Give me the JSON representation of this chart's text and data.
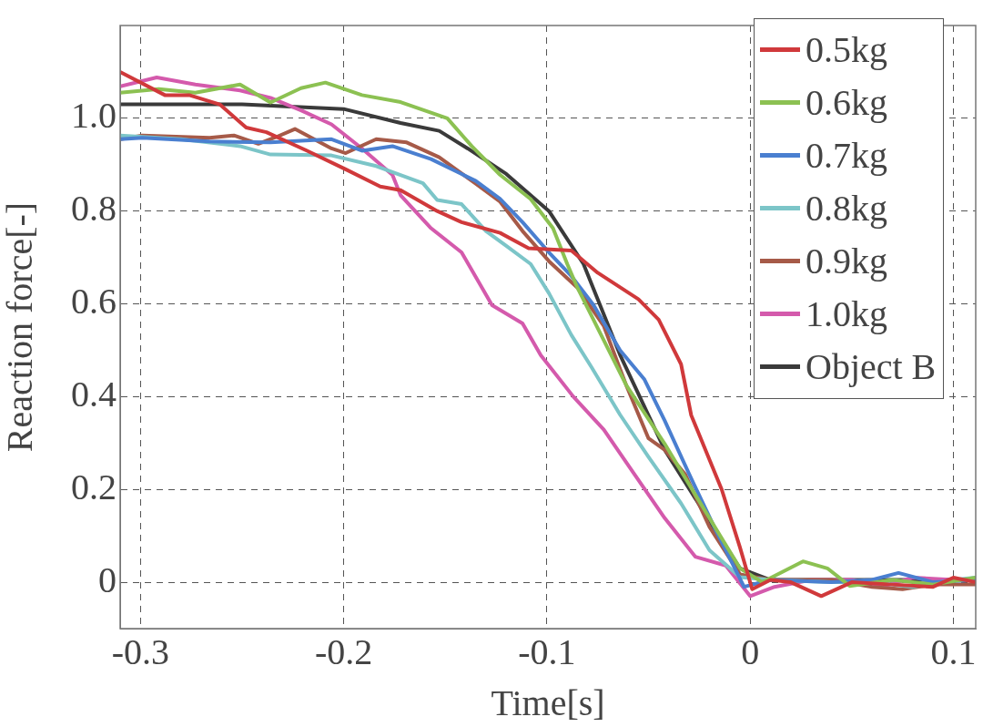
{
  "chart_data": {
    "type": "line",
    "xlabel": "Time[s]",
    "ylabel": "Reaction force[-]",
    "xlim": [
      -0.31,
      0.111
    ],
    "ylim": [
      -0.1,
      1.2
    ],
    "xticks": [
      -0.3,
      -0.2,
      -0.1,
      0,
      0.1
    ],
    "yticks": [
      0,
      0.2,
      0.4,
      0.6,
      0.8,
      {
        "value": 1,
        "label": "1.0"
      }
    ],
    "grid": true,
    "legend": "top right",
    "series": [
      {
        "name": "0.5kg",
        "color": "#d0393b",
        "x": [
          -0.31,
          -0.288,
          -0.276,
          -0.261,
          -0.248,
          -0.238,
          -0.218,
          -0.199,
          -0.182,
          -0.172,
          -0.154,
          -0.142,
          -0.123,
          -0.109,
          -0.088,
          -0.075,
          -0.055,
          -0.045,
          -0.034,
          -0.029,
          -0.014,
          -0.005,
          0.001,
          0.01,
          0.02,
          0.035,
          0.05,
          0.07,
          0.09,
          0.1,
          0.111
        ],
        "values": [
          1.1,
          1.05,
          1.05,
          1.03,
          0.98,
          0.97,
          0.93,
          0.89,
          0.853,
          0.845,
          0.8,
          0.776,
          0.753,
          0.72,
          0.715,
          0.667,
          0.61,
          0.566,
          0.47,
          0.36,
          0.2,
          0.075,
          -0.015,
          0.005,
          0.0,
          -0.03,
          0.0,
          -0.005,
          -0.01,
          0.01,
          0.0
        ]
      },
      {
        "name": "0.6kg",
        "color": "#8cc152",
        "x": [
          -0.31,
          -0.291,
          -0.273,
          -0.251,
          -0.236,
          -0.221,
          -0.209,
          -0.191,
          -0.172,
          -0.149,
          -0.137,
          -0.123,
          -0.108,
          -0.097,
          -0.09,
          -0.085,
          -0.061,
          -0.042,
          -0.02,
          -0.005,
          0.006,
          0.026,
          0.038,
          0.049,
          0.07,
          0.09,
          0.111
        ],
        "values": [
          1.055,
          1.063,
          1.055,
          1.073,
          1.034,
          1.065,
          1.077,
          1.05,
          1.035,
          1.0,
          0.94,
          0.878,
          0.826,
          0.763,
          0.686,
          0.635,
          0.425,
          0.298,
          0.138,
          0.03,
          0.0,
          0.045,
          0.03,
          -0.008,
          0.005,
          -0.005,
          0.01
        ]
      },
      {
        "name": "0.7kg",
        "color": "#4a7fd0",
        "x": [
          -0.31,
          -0.299,
          -0.266,
          -0.236,
          -0.206,
          -0.191,
          -0.176,
          -0.157,
          -0.135,
          -0.123,
          -0.112,
          -0.099,
          -0.088,
          -0.077,
          -0.064,
          -0.052,
          -0.042,
          -0.03,
          -0.017,
          -0.003,
          0.01,
          0.04,
          0.06,
          0.073,
          0.09,
          0.111
        ],
        "values": [
          0.955,
          0.958,
          0.95,
          0.948,
          0.955,
          0.93,
          0.94,
          0.912,
          0.865,
          0.826,
          0.776,
          0.711,
          0.66,
          0.597,
          0.5,
          0.437,
          0.348,
          0.233,
          0.113,
          -0.01,
          0.005,
          0.0,
          0.005,
          0.02,
          0.0,
          0.005
        ]
      },
      {
        "name": "0.8kg",
        "color": "#7cc5c8",
        "x": [
          -0.31,
          -0.28,
          -0.251,
          -0.236,
          -0.206,
          -0.184,
          -0.161,
          -0.154,
          -0.142,
          -0.13,
          -0.12,
          -0.108,
          -0.099,
          -0.088,
          -0.078,
          -0.064,
          -0.05,
          -0.034,
          -0.02,
          -0.005,
          0.01,
          0.04,
          0.06,
          0.08,
          0.1,
          0.111
        ],
        "values": [
          0.963,
          0.955,
          0.94,
          0.922,
          0.92,
          0.897,
          0.86,
          0.824,
          0.815,
          0.757,
          0.725,
          0.686,
          0.623,
          0.533,
          0.463,
          0.361,
          0.27,
          0.17,
          0.069,
          0.011,
          0.005,
          0.0,
          0.0,
          -0.01,
          0.005,
          0.01
        ]
      },
      {
        "name": "0.9kg",
        "color": "#a65a48",
        "x": [
          -0.31,
          -0.299,
          -0.266,
          -0.254,
          -0.242,
          -0.233,
          -0.224,
          -0.206,
          -0.199,
          -0.184,
          -0.169,
          -0.153,
          -0.135,
          -0.123,
          -0.112,
          -0.099,
          -0.085,
          -0.072,
          -0.061,
          -0.05,
          -0.042,
          -0.032,
          -0.02,
          -0.005,
          0.01,
          0.04,
          0.06,
          0.075,
          0.09,
          0.111
        ],
        "values": [
          0.955,
          0.963,
          0.958,
          0.963,
          0.945,
          0.96,
          0.977,
          0.935,
          0.925,
          0.955,
          0.948,
          0.916,
          0.859,
          0.82,
          0.757,
          0.692,
          0.635,
          0.552,
          0.425,
          0.31,
          0.285,
          0.233,
          0.119,
          0.017,
          0.005,
          0.005,
          -0.01,
          -0.015,
          -0.005,
          -0.005
        ]
      },
      {
        "name": "1.0kg",
        "color": "#d45aac",
        "x": [
          -0.31,
          -0.292,
          -0.273,
          -0.251,
          -0.236,
          -0.221,
          -0.206,
          -0.191,
          -0.176,
          -0.172,
          -0.157,
          -0.142,
          -0.127,
          -0.112,
          -0.103,
          -0.087,
          -0.072,
          -0.057,
          -0.042,
          -0.027,
          -0.012,
          0.0,
          0.012,
          0.03,
          0.05,
          0.065,
          0.08,
          0.1,
          0.111
        ],
        "values": [
          1.069,
          1.088,
          1.073,
          1.06,
          1.044,
          1.017,
          0.987,
          0.935,
          0.878,
          0.834,
          0.763,
          0.711,
          0.597,
          0.558,
          0.489,
          0.4,
          0.329,
          0.233,
          0.138,
          0.055,
          0.036,
          -0.03,
          -0.01,
          0.005,
          0.005,
          -0.01,
          0.01,
          0.005,
          0.005
        ]
      },
      {
        "name": "Object B",
        "color": "#3a3a3a",
        "x": [
          -0.31,
          -0.25,
          -0.2,
          -0.172,
          -0.153,
          -0.139,
          -0.12,
          -0.099,
          -0.082,
          -0.064,
          -0.042,
          -0.02,
          -0.005,
          0.01,
          0.05,
          0.111
        ],
        "values": [
          1.03,
          1.03,
          1.02,
          0.99,
          0.973,
          0.935,
          0.88,
          0.8,
          0.686,
          0.49,
          0.285,
          0.132,
          0.03,
          0.005,
          0.005,
          0.005
        ]
      }
    ]
  }
}
